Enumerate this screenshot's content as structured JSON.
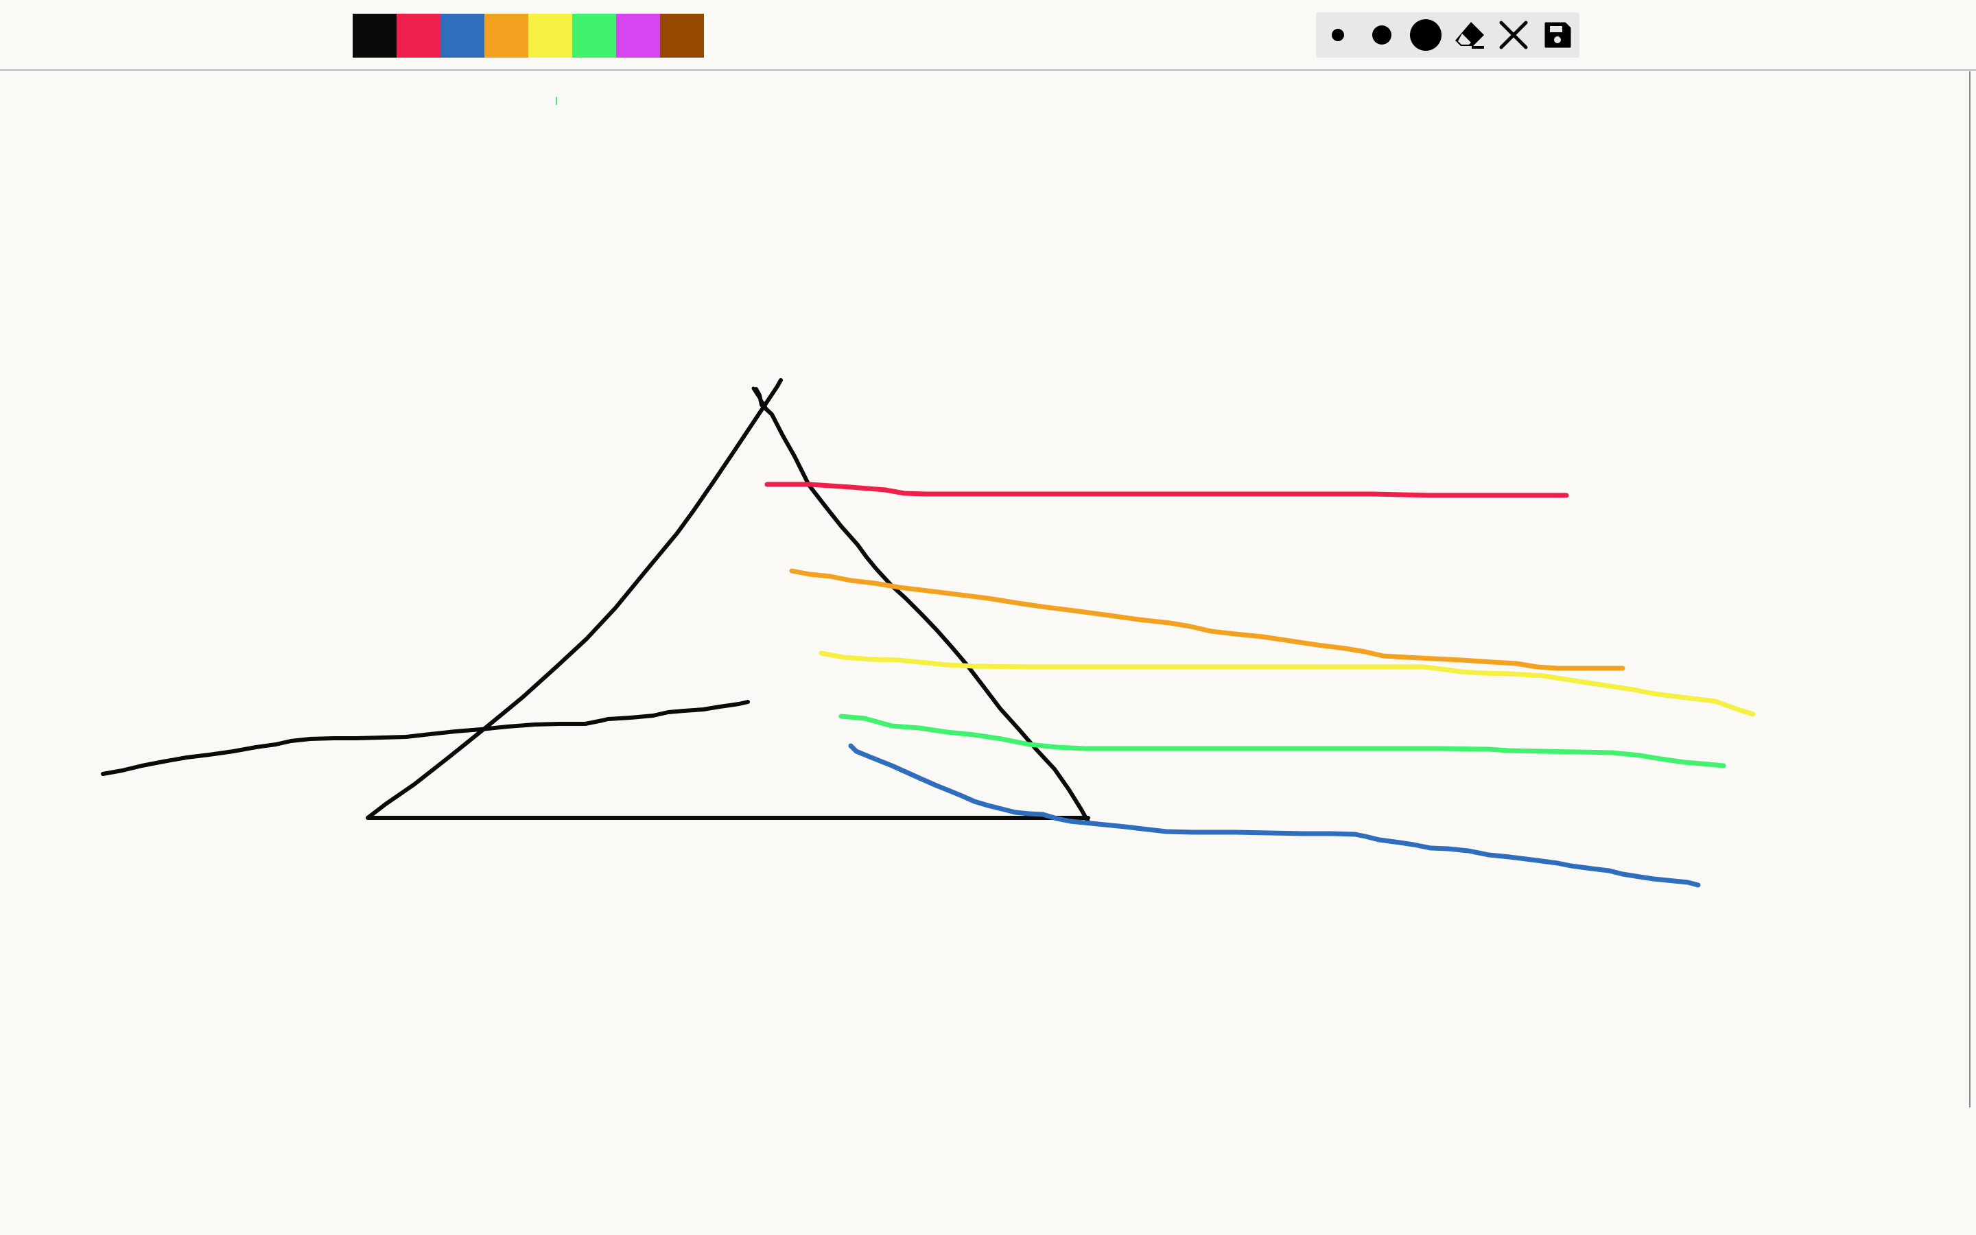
{
  "app": {
    "background": "#faf9f6"
  },
  "palette": {
    "colors": [
      {
        "name": "black",
        "hex": "#0a0a0a"
      },
      {
        "name": "red",
        "hex": "#ef1f4b"
      },
      {
        "name": "blue",
        "hex": "#2f6ebd"
      },
      {
        "name": "orange",
        "hex": "#f2a21e"
      },
      {
        "name": "yellow",
        "hex": "#f5f041"
      },
      {
        "name": "green",
        "hex": "#40f26e"
      },
      {
        "name": "purple",
        "hex": "#d745f0"
      },
      {
        "name": "brown",
        "hex": "#964900"
      }
    ]
  },
  "tools": [
    {
      "name": "brush-small",
      "icon": "dot-small-icon"
    },
    {
      "name": "brush-medium",
      "icon": "dot-medium-icon"
    },
    {
      "name": "brush-large",
      "icon": "dot-large-icon"
    },
    {
      "name": "eraser",
      "icon": "eraser-icon"
    },
    {
      "name": "clear",
      "icon": "close-icon"
    },
    {
      "name": "save",
      "icon": "save-icon"
    }
  ],
  "drawing": {
    "strokes": [
      {
        "name": "stroke-prism-left-side",
        "color": "#0a0a0a"
      },
      {
        "name": "stroke-prism-right-side",
        "color": "#0a0a0a"
      },
      {
        "name": "stroke-prism-base",
        "color": "#0a0a0a"
      },
      {
        "name": "stroke-incoming-beam",
        "color": "#0a0a0a"
      },
      {
        "name": "stroke-red-ray",
        "color": "#ef1f4b"
      },
      {
        "name": "stroke-orange-ray",
        "color": "#f2a21e"
      },
      {
        "name": "stroke-yellow-ray",
        "color": "#f5f041"
      },
      {
        "name": "stroke-green-ray",
        "color": "#40f26e"
      },
      {
        "name": "stroke-blue-ray",
        "color": "#2f6ebd"
      },
      {
        "name": "stroke-green-dot",
        "color": "#40f26e"
      }
    ]
  }
}
